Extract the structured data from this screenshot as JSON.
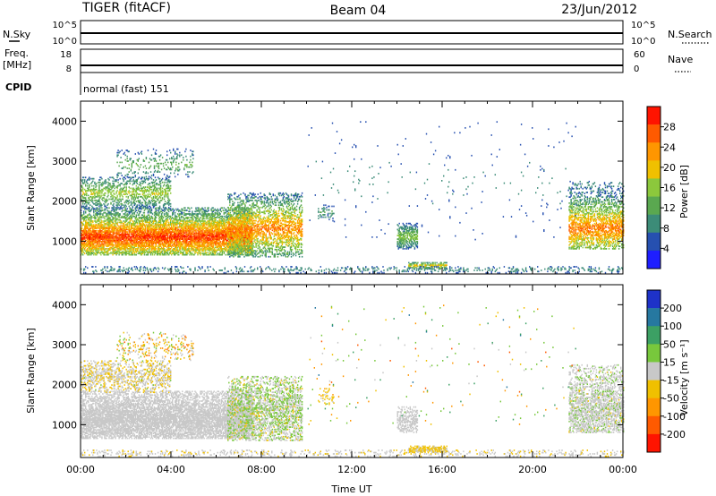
{
  "header": {
    "radar": "TIGER (fitACF)",
    "beam": "Beam 04",
    "date": "23/Jun/2012"
  },
  "strips": {
    "nsky_label": "N.Sky",
    "nsearch_label": "N.Search",
    "nsky_ticks": [
      "10^5",
      "10^0"
    ],
    "nsearch_ticks": [
      "10^5",
      "10^0"
    ],
    "freq_label": "Freq.",
    "freq_unit": "[MHz]",
    "freq_ticks": [
      "18",
      "8"
    ],
    "nave_label": "Nave",
    "nave_ticks": [
      "60",
      "0"
    ],
    "cpid_label": "CPID",
    "cpid_value": "normal (fast) 151"
  },
  "colors": {
    "power_scale": [
      "#1e1eff",
      "#2650b0",
      "#3c8c78",
      "#5aa850",
      "#8cc83c",
      "#f0c000",
      "#ff9600",
      "#ff5a00",
      "#ff1400"
    ],
    "velocity_scale": [
      "#1e32c8",
      "#2678a0",
      "#3ca064",
      "#78c83c",
      "#c8c8c8",
      "#f0c000",
      "#ff9600",
      "#ff5a00",
      "#ff1400"
    ]
  },
  "chart_data": [
    {
      "type": "heatmap",
      "name": "power",
      "ylabel": "Slant Range [km]",
      "ylim": [
        180,
        4500
      ],
      "y_ticks": [
        1000,
        2000,
        3000,
        4000
      ],
      "xlim": [
        0,
        24
      ],
      "colorbar_label": "Power [dB]",
      "colorbar_ticks": [
        "28",
        "24",
        "20",
        "16",
        "12",
        "8",
        "4"
      ],
      "colorbar_range": [
        0,
        32
      ],
      "regions": [
        {
          "t0": 0.0,
          "t1": 7.6,
          "r0": 650,
          "r1": 1850,
          "vmin": 6,
          "vmax": 30,
          "core": 1100,
          "density": 0.9
        },
        {
          "t0": 0.0,
          "t1": 4.0,
          "r0": 1800,
          "r1": 2600,
          "vmin": 4,
          "vmax": 18,
          "core": 2200,
          "density": 0.45
        },
        {
          "t0": 1.6,
          "t1": 5.0,
          "r0": 2600,
          "r1": 3300,
          "vmin": 4,
          "vmax": 14,
          "core": 2900,
          "density": 0.18
        },
        {
          "t0": 6.5,
          "t1": 9.8,
          "r0": 600,
          "r1": 2200,
          "vmin": 4,
          "vmax": 26,
          "core": 1300,
          "density": 0.55
        },
        {
          "t0": 10.5,
          "t1": 11.2,
          "r0": 1500,
          "r1": 1900,
          "vmin": 4,
          "vmax": 12,
          "core": 1700,
          "density": 0.3
        },
        {
          "t0": 14.0,
          "t1": 14.9,
          "r0": 800,
          "r1": 1450,
          "vmin": 4,
          "vmax": 16,
          "core": 1100,
          "density": 0.65
        },
        {
          "t0": 14.5,
          "t1": 16.2,
          "r0": 300,
          "r1": 480,
          "vmin": 4,
          "vmax": 22,
          "core": 380,
          "density": 0.75
        },
        {
          "t0": 0.0,
          "t1": 24.0,
          "r0": 200,
          "r1": 380,
          "vmin": 4,
          "vmax": 10,
          "core": 280,
          "density": 0.22
        },
        {
          "t0": 21.6,
          "t1": 24.0,
          "r0": 800,
          "r1": 2500,
          "vmin": 4,
          "vmax": 26,
          "core": 1300,
          "density": 0.6
        },
        {
          "t0": 10.0,
          "t1": 22.0,
          "r0": 1000,
          "r1": 4000,
          "vmin": 4,
          "vmax": 8,
          "core": 2500,
          "density": 0.01
        }
      ]
    },
    {
      "type": "heatmap",
      "name": "velocity",
      "ylabel": "Slant Range [km]",
      "ylim": [
        180,
        4500
      ],
      "y_ticks": [
        1000,
        2000,
        3000,
        4000
      ],
      "xlim": [
        0,
        24
      ],
      "x_tick_labels": [
        "00:00",
        "04:00",
        "08:00",
        "12:00",
        "16:00",
        "20:00",
        "00:00"
      ],
      "x_tick_values": [
        0,
        4,
        8,
        12,
        16,
        20,
        24
      ],
      "xlabel": "Time UT",
      "colorbar_label": "Velocity [m s⁻¹]",
      "colorbar_ticks": [
        "200",
        "100",
        "50",
        "15",
        "-15",
        "-50",
        "-100",
        "-200"
      ],
      "colorbar_range": [
        -250,
        250
      ],
      "regions": [
        {
          "t0": 0.0,
          "t1": 7.6,
          "r0": 650,
          "r1": 1850,
          "vmin": -20,
          "vmax": 20,
          "core": 1100,
          "density": 0.85
        },
        {
          "t0": 0.0,
          "t1": 4.0,
          "r0": 1800,
          "r1": 2600,
          "vmin": -60,
          "vmax": 30,
          "core": 2200,
          "density": 0.45
        },
        {
          "t0": 1.6,
          "t1": 5.0,
          "r0": 2600,
          "r1": 3300,
          "vmin": -150,
          "vmax": 60,
          "core": 2900,
          "density": 0.18
        },
        {
          "t0": 6.5,
          "t1": 9.8,
          "r0": 600,
          "r1": 2200,
          "vmin": -40,
          "vmax": 80,
          "core": 1300,
          "density": 0.55
        },
        {
          "t0": 10.5,
          "t1": 11.2,
          "r0": 1500,
          "r1": 1900,
          "vmin": -90,
          "vmax": -20,
          "core": 1700,
          "density": 0.3
        },
        {
          "t0": 14.0,
          "t1": 14.9,
          "r0": 800,
          "r1": 1450,
          "vmin": -20,
          "vmax": 10,
          "core": 1100,
          "density": 0.6
        },
        {
          "t0": 14.5,
          "t1": 16.2,
          "r0": 300,
          "r1": 480,
          "vmin": -60,
          "vmax": -20,
          "core": 380,
          "density": 0.75
        },
        {
          "t0": 0.0,
          "t1": 24.0,
          "r0": 200,
          "r1": 380,
          "vmin": -40,
          "vmax": 10,
          "core": 280,
          "density": 0.22
        },
        {
          "t0": 21.6,
          "t1": 24.0,
          "r0": 800,
          "r1": 2500,
          "vmin": -30,
          "vmax": 40,
          "core": 1300,
          "density": 0.6
        },
        {
          "t0": 10.0,
          "t1": 22.0,
          "r0": 1000,
          "r1": 4000,
          "vmin": -150,
          "vmax": 150,
          "core": 2500,
          "density": 0.01
        }
      ]
    }
  ]
}
